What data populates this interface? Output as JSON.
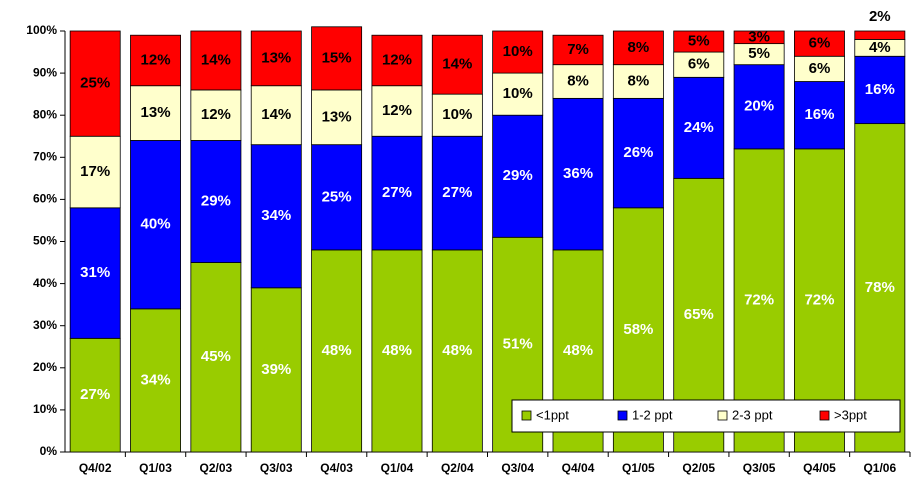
{
  "chart_data": {
    "type": "stacked_bar",
    "categories": [
      "Q4/02",
      "Q1/03",
      "Q2/03",
      "Q3/03",
      "Q4/03",
      "Q1/04",
      "Q2/04",
      "Q3/04",
      "Q4/04",
      "Q1/05",
      "Q2/05",
      "Q3/05",
      "Q4/05",
      "Q1/06"
    ],
    "series": [
      {
        "name": "<1ppt",
        "color": "#99cc00",
        "label_color": "#ffffff",
        "values": [
          27,
          34,
          45,
          39,
          48,
          48,
          48,
          51,
          48,
          58,
          65,
          72,
          72,
          78
        ],
        "value_labels": [
          "27%",
          "34%",
          "45%",
          "39%",
          "48%",
          "48%",
          "48%",
          "51%",
          "48%",
          "58%",
          "65%",
          "72%",
          "72%",
          "78%"
        ]
      },
      {
        "name": "1-2 ppt",
        "color": "#0000ff",
        "label_color": "#ffffff",
        "values": [
          31,
          40,
          29,
          34,
          25,
          27,
          27,
          29,
          36,
          26,
          24,
          20,
          16,
          16
        ],
        "value_labels": [
          "31%",
          "40%",
          "29%",
          "34%",
          "25%",
          "27%",
          "27%",
          "29%",
          "36%",
          "26%",
          "24%",
          "20%",
          "16%",
          "16%"
        ]
      },
      {
        "name": "2-3 ppt",
        "color": "#ffffcc",
        "label_color": "#000000",
        "values": [
          17,
          13,
          12,
          14,
          13,
          12,
          10,
          10,
          8,
          8,
          6,
          5,
          6,
          4
        ],
        "value_labels": [
          "17%",
          "13%",
          "12%",
          "14%",
          "13%",
          "12%",
          "10%",
          "10%",
          "8%",
          "8%",
          "6%",
          "5%",
          "6%",
          "4%"
        ]
      },
      {
        "name": ">3ppt",
        "color": "#ff0000",
        "label_color": "#000000",
        "values": [
          25,
          12,
          14,
          13,
          15,
          12,
          14,
          10,
          7,
          8,
          5,
          3,
          6,
          2
        ],
        "value_labels": [
          "25%",
          "12%",
          "14%",
          "13%",
          "15%",
          "12%",
          "14%",
          "10%",
          "7%",
          "8%",
          "5%",
          "3%",
          "6%",
          "2%"
        ]
      }
    ],
    "ylim": [
      0,
      100
    ],
    "yticks": [
      {
        "value": 0,
        "label": "0%"
      },
      {
        "value": 10,
        "label": "10%"
      },
      {
        "value": 20,
        "label": "20%"
      },
      {
        "value": 30,
        "label": "30%"
      },
      {
        "value": 40,
        "label": "40%"
      },
      {
        "value": 50,
        "label": "50%"
      },
      {
        "value": 60,
        "label": "60%"
      },
      {
        "value": 70,
        "label": "70%"
      },
      {
        "value": 80,
        "label": "80%"
      },
      {
        "value": 90,
        "label": "90%"
      },
      {
        "value": 100,
        "label": "100%"
      }
    ],
    "grid": false,
    "legend": "lower right"
  }
}
